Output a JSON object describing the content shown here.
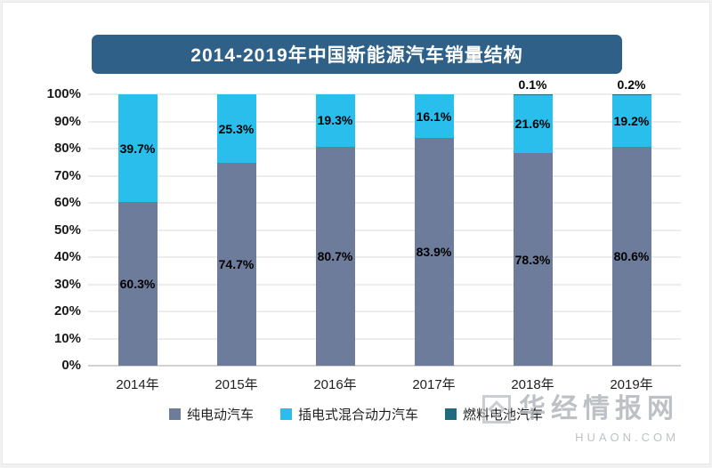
{
  "title": "2014-2019年中国新能源汽车销量结构",
  "watermark": {
    "name": "华经情报网",
    "domain": "HUAON.COM"
  },
  "chart_data": {
    "type": "bar",
    "variant": "stacked-100-percent",
    "title": "2014-2019年中国新能源汽车销量结构",
    "categories": [
      "2014年",
      "2015年",
      "2016年",
      "2017年",
      "2018年",
      "2019年"
    ],
    "series": [
      {
        "name": "纯电动汽车",
        "color": "#6E7C9C",
        "values": [
          60.3,
          74.7,
          80.7,
          83.9,
          78.3,
          80.6
        ],
        "labels": [
          "60.3%",
          "74.7%",
          "80.7%",
          "83.9%",
          "78.3%",
          "80.6%"
        ]
      },
      {
        "name": "插电式混合动力汽车",
        "color": "#29BEEC",
        "values": [
          39.7,
          25.3,
          19.3,
          16.1,
          21.6,
          19.2
        ],
        "labels": [
          "39.7%",
          "25.3%",
          "19.3%",
          "16.1%",
          "21.6%",
          "19.2%"
        ]
      },
      {
        "name": "燃料电池汽车",
        "color": "#206B80",
        "values": [
          0,
          0,
          0,
          0,
          0.1,
          0.2
        ],
        "labels": [
          "",
          "",
          "",
          "",
          "0.1%",
          "0.2%"
        ]
      }
    ],
    "y_ticks": [
      "100%",
      "90%",
      "80%",
      "70%",
      "60%",
      "50%",
      "40%",
      "30%",
      "20%",
      "10%",
      "0%"
    ],
    "ylim": [
      0,
      100
    ],
    "grid": true,
    "legend_position": "bottom"
  }
}
